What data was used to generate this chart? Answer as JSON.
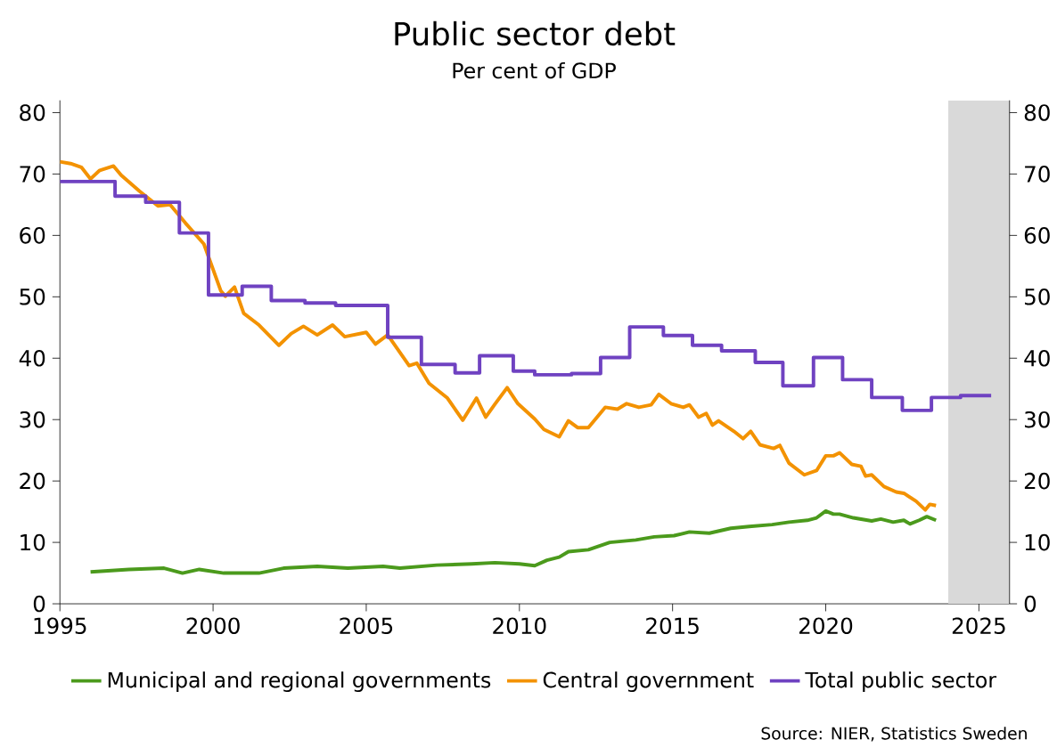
{
  "chart_data": {
    "type": "line",
    "title": "Public sector debt",
    "subtitle": "Per cent of GDP",
    "annotations": [
      "Source: NIER, Statistics Sweden"
    ],
    "xlim": [
      1995,
      2026
    ],
    "xticks": [
      1995,
      2000,
      2005,
      2010,
      2015,
      2020,
      2025
    ],
    "ylim": [
      0,
      82
    ],
    "yticks": [
      0,
      10,
      20,
      30,
      40,
      50,
      60,
      70,
      80
    ],
    "y2lim": [
      0,
      82
    ],
    "y2ticks": [
      0,
      10,
      20,
      30,
      40,
      50,
      60,
      70,
      80
    ],
    "bands": [
      {
        "axis": "x",
        "from": 2024,
        "to": 2026,
        "color": "#d9d9d9"
      }
    ],
    "legend": "bottom",
    "grid": false,
    "marker": "none",
    "line_style": "solid",
    "series": [
      {
        "name": "Municipal and regional governments",
        "color": "#4b9a1c",
        "x": [
          1996.0,
          1997.25,
          1998.4,
          1999.0,
          1999.55,
          2000.35,
          2001.5,
          2002.3,
          2003.4,
          2004.4,
          2005.55,
          2006.1,
          2007.3,
          2008.45,
          2009.2,
          2010.0,
          2010.5,
          2010.9,
          2011.3,
          2011.6,
          2012.25,
          2012.95,
          2013.8,
          2014.4,
          2015.05,
          2015.55,
          2016.2,
          2016.9,
          2017.5,
          2018.25,
          2018.8,
          2019.4,
          2019.7,
          2020.0,
          2020.25,
          2020.45,
          2020.9,
          2021.5,
          2021.8,
          2022.2,
          2022.55,
          2022.75,
          2023.05,
          2023.3,
          2023.6
        ],
        "values": [
          5.2,
          5.6,
          5.8,
          5.0,
          5.6,
          5.0,
          5.0,
          5.8,
          6.1,
          5.8,
          6.1,
          5.8,
          6.3,
          6.5,
          6.7,
          6.5,
          6.2,
          7.1,
          7.6,
          8.5,
          8.8,
          10.0,
          10.4,
          10.9,
          11.1,
          11.7,
          11.5,
          12.3,
          12.6,
          12.9,
          13.3,
          13.6,
          14.0,
          15.1,
          14.6,
          14.6,
          14.0,
          13.5,
          13.8,
          13.3,
          13.6,
          13.0,
          13.6,
          14.2,
          13.6
        ]
      },
      {
        "name": "Central government",
        "color": "#f39200",
        "x": [
          1995.0,
          1995.35,
          1995.7,
          1996.0,
          1996.3,
          1996.75,
          1997.0,
          1997.6,
          1998.2,
          1998.6,
          1999.1,
          1999.7,
          2000.25,
          2000.4,
          2000.7,
          2001.0,
          2001.5,
          2002.15,
          2002.55,
          2002.95,
          2003.4,
          2003.9,
          2004.3,
          2005.0,
          2005.3,
          2005.7,
          2006.4,
          2006.65,
          2007.05,
          2007.65,
          2008.15,
          2008.6,
          2008.9,
          2009.2,
          2009.6,
          2009.95,
          2010.5,
          2010.8,
          2011.3,
          2011.6,
          2011.9,
          2012.25,
          2012.8,
          2013.2,
          2013.5,
          2013.9,
          2014.3,
          2014.55,
          2014.95,
          2015.35,
          2015.55,
          2015.85,
          2016.1,
          2016.3,
          2016.5,
          2017.0,
          2017.3,
          2017.55,
          2017.85,
          2018.3,
          2018.5,
          2018.8,
          2019.3,
          2019.7,
          2020.0,
          2020.25,
          2020.45,
          2020.85,
          2021.15,
          2021.3,
          2021.5,
          2021.9,
          2022.3,
          2022.55,
          2022.95,
          2023.25,
          2023.4,
          2023.6
        ],
        "values": [
          72.0,
          71.7,
          71.1,
          69.2,
          70.6,
          71.3,
          69.8,
          67.2,
          64.8,
          65.0,
          62.0,
          58.6,
          51.0,
          50.1,
          51.6,
          47.3,
          45.4,
          42.1,
          44.0,
          45.2,
          43.8,
          45.4,
          43.5,
          44.2,
          42.3,
          43.8,
          38.8,
          39.2,
          35.9,
          33.5,
          29.9,
          33.5,
          30.4,
          32.5,
          35.2,
          32.6,
          30.1,
          28.4,
          27.2,
          29.8,
          28.7,
          28.7,
          32.0,
          31.7,
          32.6,
          32.0,
          32.4,
          34.1,
          32.6,
          32.0,
          32.4,
          30.4,
          31.0,
          29.1,
          29.8,
          28.1,
          26.9,
          28.1,
          25.9,
          25.3,
          25.8,
          22.9,
          21.0,
          21.7,
          24.1,
          24.1,
          24.6,
          22.7,
          22.4,
          20.8,
          21.0,
          19.1,
          18.2,
          18.0,
          16.7,
          15.3,
          16.2,
          16.0
        ]
      },
      {
        "name": "Total public sector",
        "color": "#6f42c1",
        "type": "step",
        "x": [
          1995.0,
          1996.8,
          1997.8,
          1998.9,
          1999.85,
          2000.95,
          2001.9,
          2003.0,
          2004.0,
          2005.7,
          2006.8,
          2007.9,
          2008.7,
          2009.8,
          2010.5,
          2011.7,
          2012.65,
          2013.6,
          2014.7,
          2015.65,
          2016.6,
          2017.7,
          2018.6,
          2019.6,
          2020.55,
          2021.5,
          2022.5,
          2023.45,
          2024.4,
          2025.4
        ],
        "values": [
          68.8,
          66.4,
          65.4,
          60.4,
          50.3,
          51.7,
          49.4,
          49.0,
          48.6,
          43.4,
          39.0,
          37.6,
          40.4,
          37.9,
          37.3,
          37.5,
          40.1,
          45.1,
          43.7,
          42.1,
          41.2,
          39.3,
          35.5,
          40.1,
          36.5,
          33.6,
          31.5,
          33.6,
          33.9,
          33.9
        ]
      }
    ]
  }
}
